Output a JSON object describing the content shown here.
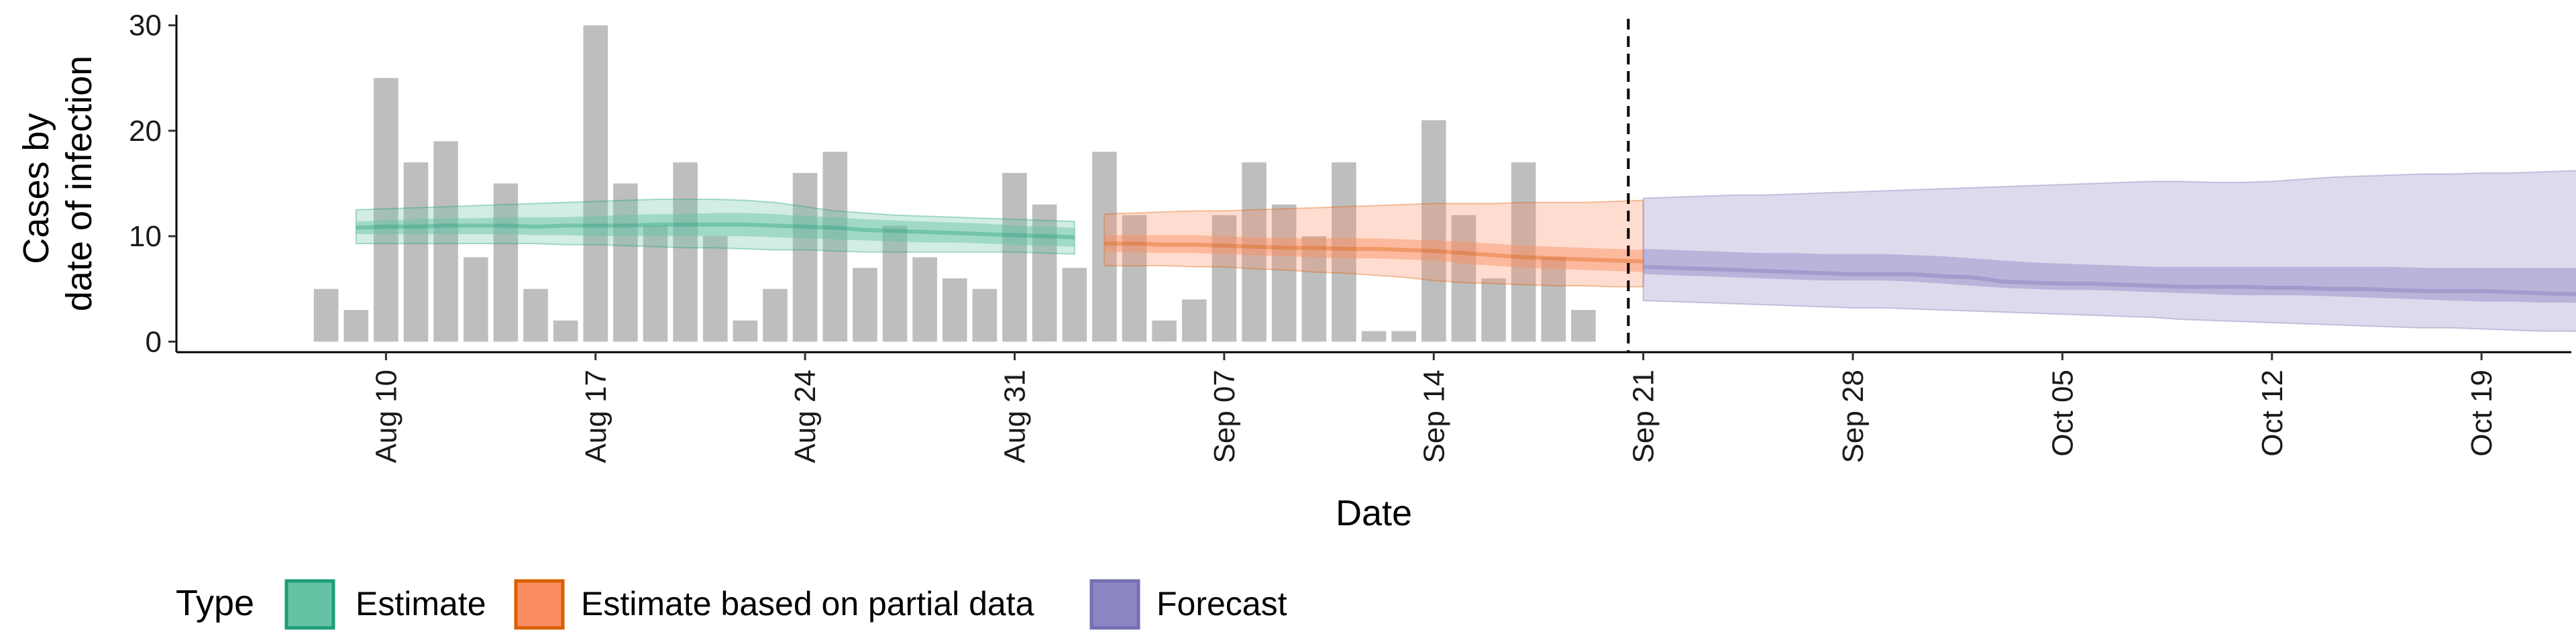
{
  "chart_data": {
    "type": "bar",
    "xlabel": "Date",
    "ylabel_lines": [
      "Cases by",
      "date of infection"
    ],
    "ylim": [
      -1,
      31
    ],
    "yticks": [
      0,
      10,
      20,
      30
    ],
    "xlim": [
      "2021-08-03",
      "2021-10-22"
    ],
    "xticks": [
      {
        "date": "2021-08-10",
        "label": "Aug 10"
      },
      {
        "date": "2021-08-17",
        "label": "Aug 17"
      },
      {
        "date": "2021-08-24",
        "label": "Aug 24"
      },
      {
        "date": "2021-08-31",
        "label": "Aug 31"
      },
      {
        "date": "2021-09-07",
        "label": "Sep 07"
      },
      {
        "date": "2021-09-14",
        "label": "Sep 14"
      },
      {
        "date": "2021-09-21",
        "label": "Sep 21"
      },
      {
        "date": "2021-09-28",
        "label": "Sep 28"
      },
      {
        "date": "2021-10-05",
        "label": "Oct 05"
      },
      {
        "date": "2021-10-12",
        "label": "Oct 12"
      },
      {
        "date": "2021-10-19",
        "label": "Oct 19"
      }
    ],
    "forecast_date": "2021-09-20",
    "reported_cases": {
      "start_date": "2021-08-08",
      "color": "#bebebe",
      "values": [
        5,
        3,
        25,
        17,
        19,
        8,
        15,
        5,
        2,
        30,
        15,
        11,
        17,
        10,
        2,
        5,
        16,
        18,
        7,
        11,
        8,
        6,
        5,
        16,
        13,
        7,
        18,
        12,
        2,
        4,
        12,
        17,
        13,
        10,
        17,
        1,
        1,
        21,
        12,
        6,
        17,
        8,
        3
      ]
    },
    "series": [
      {
        "name": "Estimate",
        "color": "#1b9e77",
        "fill": "#66c2a5",
        "start_date": "2021-08-09",
        "median": [
          10.8,
          10.9,
          10.9,
          11.0,
          11.0,
          11.0,
          10.9,
          11.0,
          11.0,
          11.0,
          11.1,
          11.1,
          11.1,
          11.1,
          11.0,
          10.9,
          10.8,
          10.6,
          10.5,
          10.4,
          10.3,
          10.2,
          10.1,
          10.0,
          9.9
        ],
        "lower50": [
          10.2,
          10.2,
          10.2,
          10.2,
          10.2,
          10.2,
          10.1,
          10.1,
          10.0,
          10.0,
          10.0,
          10.0,
          10.0,
          10.0,
          9.9,
          9.8,
          9.7,
          9.6,
          9.5,
          9.4,
          9.4,
          9.3,
          9.2,
          9.1,
          9.0
        ],
        "upper50": [
          11.4,
          11.5,
          11.6,
          11.7,
          11.7,
          11.8,
          11.8,
          11.8,
          11.9,
          12.0,
          12.1,
          12.1,
          12.2,
          12.2,
          12.1,
          11.9,
          11.8,
          11.6,
          11.5,
          11.4,
          11.3,
          11.2,
          11.0,
          10.9,
          10.8
        ],
        "lower90": [
          9.3,
          9.3,
          9.3,
          9.3,
          9.3,
          9.3,
          9.3,
          9.2,
          9.2,
          9.1,
          9.0,
          8.9,
          8.9,
          8.8,
          8.7,
          8.7,
          8.6,
          8.5,
          8.5,
          8.5,
          8.5,
          8.5,
          8.5,
          8.4,
          8.3
        ],
        "upper90": [
          12.5,
          12.6,
          12.7,
          12.8,
          12.9,
          13.0,
          13.1,
          13.2,
          13.3,
          13.4,
          13.5,
          13.5,
          13.5,
          13.4,
          13.2,
          12.8,
          12.4,
          12.2,
          12.0,
          11.9,
          11.8,
          11.7,
          11.6,
          11.5,
          11.4
        ]
      },
      {
        "name": "Estimate based on partial data",
        "color": "#d95f02",
        "fill": "#fc8d62",
        "start_date": "2021-09-03",
        "median": [
          9.3,
          9.3,
          9.2,
          9.2,
          9.1,
          9.0,
          8.9,
          8.9,
          8.8,
          8.8,
          8.7,
          8.6,
          8.4,
          8.2,
          8.0,
          7.9,
          7.8,
          7.7,
          7.6
        ],
        "lower50": [
          8.5,
          8.5,
          8.4,
          8.4,
          8.3,
          8.2,
          8.1,
          8.0,
          7.9,
          7.9,
          7.8,
          7.7,
          7.4,
          7.2,
          7.0,
          6.9,
          6.8,
          6.7,
          6.6
        ],
        "upper50": [
          10.1,
          10.1,
          10.1,
          10.1,
          10.0,
          9.9,
          9.8,
          9.8,
          9.8,
          9.8,
          9.7,
          9.6,
          9.5,
          9.3,
          9.1,
          9.0,
          8.9,
          8.8,
          8.7
        ],
        "lower90": [
          7.2,
          7.2,
          7.2,
          7.1,
          7.1,
          6.9,
          6.8,
          6.6,
          6.5,
          6.3,
          6.1,
          5.8,
          5.6,
          5.5,
          5.4,
          5.3,
          5.3,
          5.2,
          5.2
        ],
        "upper90": [
          12.1,
          12.2,
          12.3,
          12.4,
          12.4,
          12.5,
          12.6,
          12.7,
          12.8,
          12.9,
          13.0,
          13.1,
          13.1,
          13.1,
          13.2,
          13.2,
          13.2,
          13.3,
          13.4
        ]
      },
      {
        "name": "Forecast",
        "color": "#7570b3",
        "fill": "#8d86c4",
        "start_date": "2021-09-21",
        "median": [
          7.1,
          7.0,
          6.9,
          6.8,
          6.7,
          6.6,
          6.5,
          6.4,
          6.4,
          6.4,
          6.2,
          6.1,
          5.7,
          5.6,
          5.5,
          5.5,
          5.4,
          5.3,
          5.2,
          5.2,
          5.2,
          5.1,
          5.1,
          5.0,
          5.0,
          4.9,
          4.8,
          4.8,
          4.8,
          4.7,
          4.6,
          4.5,
          4.4
        ],
        "lower50": [
          6.4,
          6.3,
          6.2,
          6.1,
          6.0,
          5.9,
          5.8,
          5.8,
          5.8,
          5.7,
          5.5,
          5.3,
          5.1,
          5.0,
          4.9,
          4.9,
          4.8,
          4.7,
          4.6,
          4.5,
          4.4,
          4.4,
          4.4,
          4.3,
          4.2,
          4.1,
          4.0,
          3.9,
          3.8,
          3.8,
          3.7,
          3.7,
          3.6
        ],
        "upper50": [
          8.8,
          8.7,
          8.6,
          8.5,
          8.4,
          8.4,
          8.3,
          8.3,
          8.3,
          8.2,
          8.1,
          7.9,
          7.7,
          7.5,
          7.4,
          7.3,
          7.2,
          7.1,
          7.1,
          7.1,
          7.1,
          7.1,
          7.1,
          7.1,
          7.1,
          7.1,
          7.0,
          7.0,
          7.0,
          7.0,
          7.0,
          7.0,
          7.0
        ],
        "lower90": [
          3.9,
          3.8,
          3.7,
          3.6,
          3.5,
          3.4,
          3.3,
          3.2,
          3.2,
          3.1,
          3.0,
          2.9,
          2.8,
          2.7,
          2.6,
          2.5,
          2.4,
          2.3,
          2.1,
          2.0,
          1.9,
          1.8,
          1.7,
          1.6,
          1.5,
          1.4,
          1.3,
          1.3,
          1.2,
          1.1,
          1.0,
          1.0,
          0.9
        ],
        "upper90": [
          13.6,
          13.7,
          13.8,
          13.9,
          13.9,
          14.0,
          14.1,
          14.2,
          14.3,
          14.4,
          14.5,
          14.6,
          14.7,
          14.8,
          14.9,
          15.0,
          15.1,
          15.2,
          15.2,
          15.1,
          15.1,
          15.2,
          15.4,
          15.6,
          15.7,
          15.8,
          15.9,
          15.9,
          16.0,
          16.0,
          16.1,
          16.2,
          16.3
        ]
      }
    ],
    "legend": {
      "title": "Type",
      "position": "bottom-left",
      "entries": [
        {
          "label": "Estimate",
          "fill": "#66c2a5",
          "border": "#1b9e77"
        },
        {
          "label": "Estimate based on partial data",
          "fill": "#fc8d62",
          "border": "#d95f02"
        },
        {
          "label": "Forecast",
          "fill": "#8d86c4",
          "border": "#7570b3"
        }
      ]
    },
    "grid": false
  }
}
